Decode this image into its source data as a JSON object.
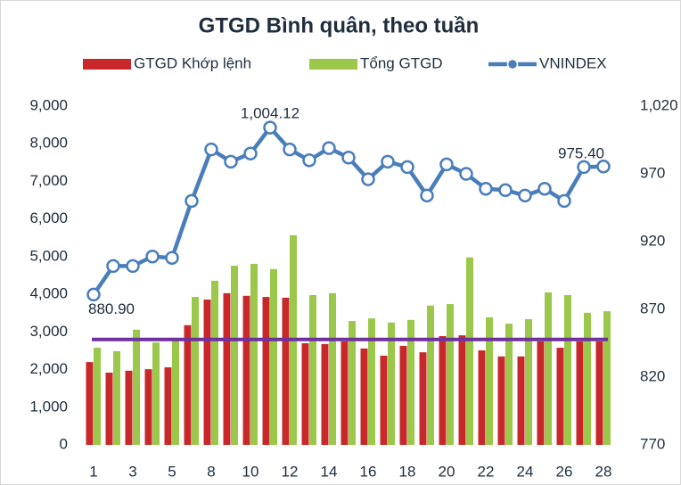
{
  "chart_data": {
    "type": "bar",
    "title": "GTGD Bình quân, theo tuần",
    "categories": [
      "1",
      null,
      "3",
      null,
      "5",
      null,
      "8",
      null,
      "10",
      null,
      "12",
      null,
      "14",
      null,
      "16",
      null,
      "18",
      null,
      "20",
      null,
      "22",
      null,
      "24",
      null,
      "26",
      null,
      "28"
    ],
    "series": [
      {
        "name": "GTGD Khớp lệnh",
        "type": "bar",
        "color": "#c8282a",
        "values": [
          2200,
          1920,
          1970,
          2010,
          2060,
          3180,
          3860,
          4030,
          3960,
          3930,
          3910,
          2700,
          2680,
          2750,
          2560,
          2370,
          2630,
          2460,
          2890,
          2910,
          2510,
          2350,
          2350,
          2750,
          2580,
          2750,
          2750
        ]
      },
      {
        "name": "Tổng GTGD",
        "type": "bar",
        "color": "#9bc84a",
        "values": [
          2580,
          2490,
          3060,
          2720,
          2770,
          3930,
          4360,
          4760,
          4810,
          4670,
          5570,
          3980,
          4030,
          3290,
          3360,
          3250,
          3320,
          3700,
          3740,
          4980,
          3390,
          3220,
          3340,
          4050,
          3980,
          3510,
          3550
        ]
      },
      {
        "name": "VNINDEX",
        "type": "line",
        "axis": "y2",
        "color": "#4a7ebb",
        "values": [
          880.9,
          902,
          902,
          909,
          908,
          950,
          988,
          979,
          985,
          1004.12,
          988,
          980,
          989,
          982,
          966,
          979,
          975,
          954,
          977,
          970,
          959,
          958,
          954,
          959,
          950,
          975,
          975.4
        ],
        "value_labels": [
          "880.90",
          null,
          null,
          null,
          null,
          null,
          null,
          null,
          null,
          "1,004.12",
          null,
          null,
          null,
          null,
          null,
          null,
          null,
          null,
          null,
          null,
          null,
          null,
          null,
          null,
          null,
          null,
          "975.40"
        ]
      }
    ],
    "reference_line": {
      "value": 2800,
      "color": "#7030a0"
    },
    "ylim": [
      0,
      9000
    ],
    "yticks": [
      0,
      {
        "value": 1000,
        "label": "1,000"
      },
      {
        "value": 2000,
        "label": "2,000"
      },
      {
        "value": 3000,
        "label": "3,000"
      },
      {
        "value": 4000,
        "label": "4,000"
      },
      {
        "value": 5000,
        "label": "5,000"
      },
      {
        "value": 6000,
        "label": "6,000"
      },
      {
        "value": 7000,
        "label": "7,000"
      },
      {
        "value": 8000,
        "label": "8,000"
      },
      {
        "value": 9000,
        "label": "9,000"
      }
    ],
    "y2lim": [
      770,
      1020
    ],
    "y2ticks": [
      770,
      820,
      870,
      920,
      970,
      {
        "value": 1020,
        "label": "1,020"
      }
    ],
    "grid": false,
    "legend": "top"
  }
}
